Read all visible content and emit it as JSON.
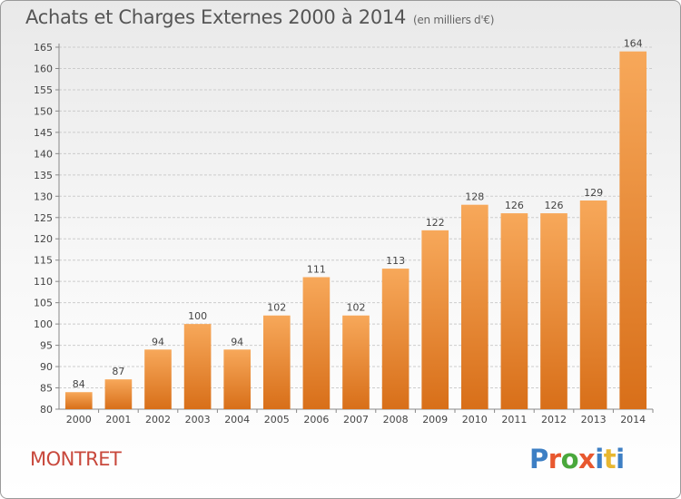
{
  "title": "Achats et Charges Externes 2000 à 2014",
  "unit": "(en milliers d'€)",
  "commune": "MONTRET",
  "logo": {
    "text": "Proxiti",
    "colors": [
      "#3d7fc4",
      "#e8582f",
      "#4aa83c",
      "#e8582f",
      "#3d7fc4",
      "#e8b730",
      "#3d7fc4"
    ]
  },
  "colors": {
    "bar_top": "#f7a85a",
    "bar_bottom": "#d86f19",
    "grid": "#cccccc",
    "axis": "#888888"
  },
  "chart_data": {
    "type": "bar",
    "categories": [
      "2000",
      "2001",
      "2002",
      "2003",
      "2004",
      "2005",
      "2006",
      "2007",
      "2008",
      "2009",
      "2010",
      "2011",
      "2012",
      "2013",
      "2014"
    ],
    "values": [
      84,
      87,
      94,
      100,
      94,
      102,
      111,
      102,
      113,
      122,
      128,
      126,
      126,
      129,
      164
    ],
    "ylim": [
      80,
      165
    ],
    "yticks": [
      80,
      85,
      90,
      95,
      100,
      105,
      110,
      115,
      120,
      125,
      130,
      135,
      140,
      145,
      150,
      155,
      160,
      165
    ],
    "grid": true,
    "xlabel": "",
    "ylabel": ""
  }
}
